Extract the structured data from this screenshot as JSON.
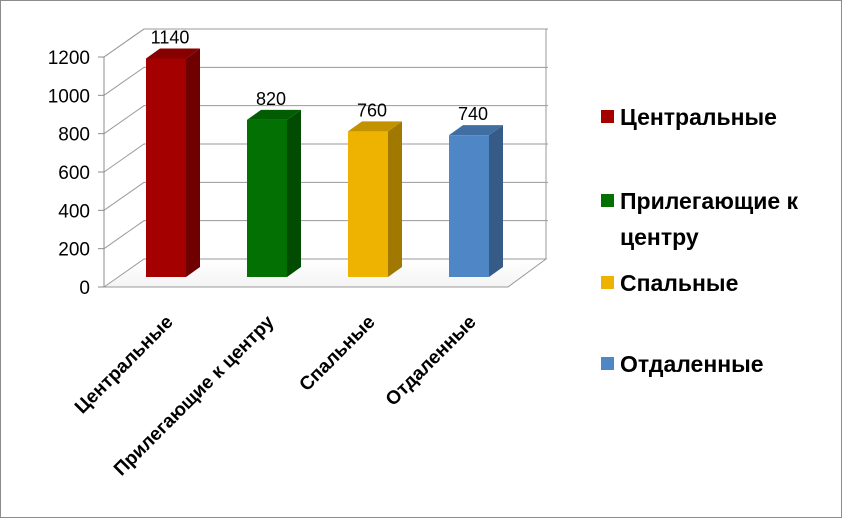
{
  "chart_data": {
    "type": "bar",
    "style": "3d-column",
    "categories": [
      "Центральные",
      "Прилегающие к центру",
      "Спальные",
      "Отдаленные"
    ],
    "values": [
      1140,
      820,
      760,
      740
    ],
    "data_labels": [
      "1140",
      "820",
      "760",
      "740"
    ],
    "colors": [
      "#A50000",
      "#037003",
      "#EEB200",
      "#4F86C6"
    ],
    "y_ticks": [
      "0",
      "200",
      "400",
      "600",
      "800",
      "1000",
      "1200"
    ],
    "ylim": [
      0,
      1200
    ],
    "grid": true,
    "legend": {
      "position": "right",
      "entries": [
        "Центральные",
        "Прилегающие к центру",
        "Спальные",
        "Отдаленные"
      ]
    }
  }
}
